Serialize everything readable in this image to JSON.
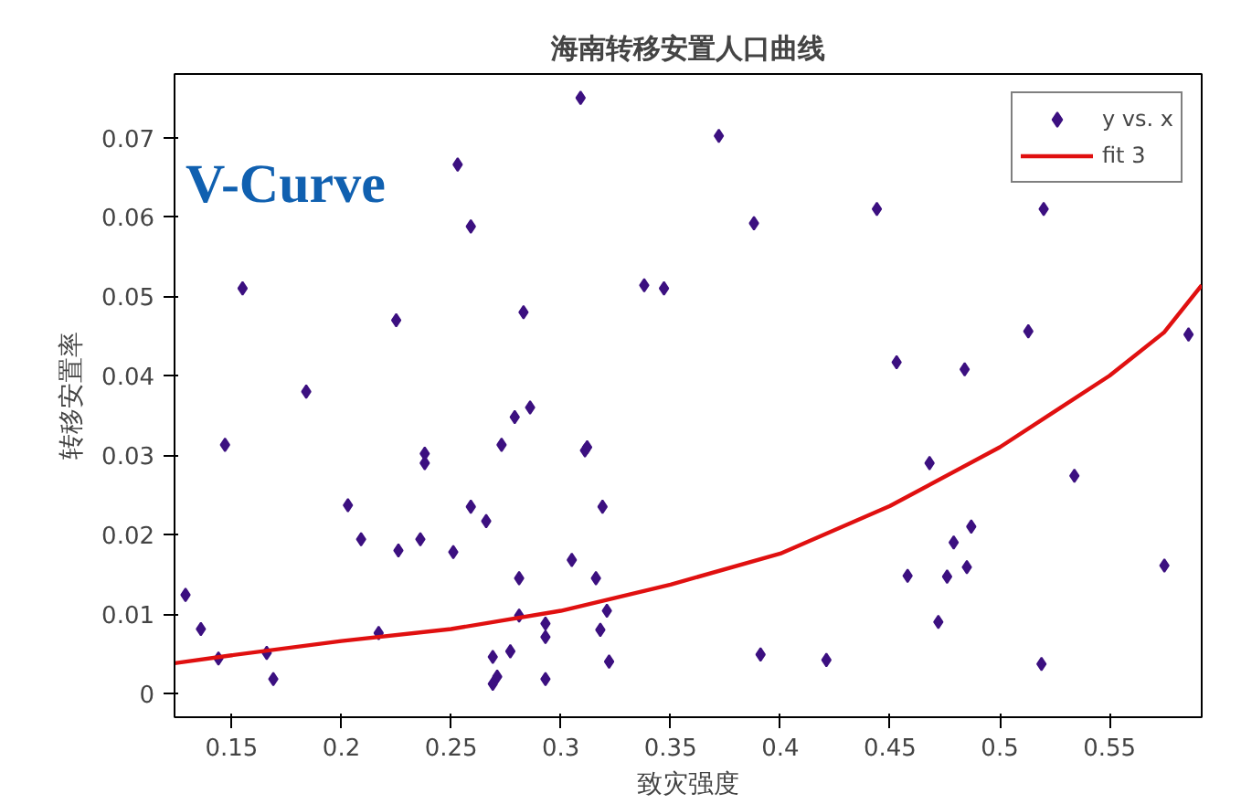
{
  "chart_data": {
    "type": "scatter",
    "title": "海南转移安置人口曲线",
    "xlabel": "致灾强度",
    "ylabel": "转移安置率",
    "annotations": [
      "V-Curve"
    ],
    "xlim": [
      0.124,
      0.592
    ],
    "ylim": [
      -0.003,
      0.078
    ],
    "xticks": [
      0.15,
      0.2,
      0.25,
      0.3,
      0.35,
      0.4,
      0.45,
      0.5,
      0.55
    ],
    "yticks": [
      0,
      0.01,
      0.02,
      0.03,
      0.04,
      0.05,
      0.06,
      0.07
    ],
    "grid": false,
    "legend": "top right",
    "marker": "diamond",
    "series": [
      {
        "name": "y vs. x",
        "type": "scatter",
        "color": "#3c1080",
        "x": [
          0.129,
          0.136,
          0.144,
          0.147,
          0.155,
          0.166,
          0.169,
          0.184,
          0.203,
          0.209,
          0.217,
          0.225,
          0.226,
          0.236,
          0.238,
          0.238,
          0.251,
          0.253,
          0.259,
          0.259,
          0.266,
          0.269,
          0.269,
          0.271,
          0.273,
          0.277,
          0.279,
          0.281,
          0.283,
          0.286,
          0.281,
          0.293,
          0.293,
          0.293,
          0.305,
          0.309,
          0.311,
          0.312,
          0.316,
          0.319,
          0.321,
          0.322,
          0.318,
          0.338,
          0.347,
          0.372,
          0.388,
          0.391,
          0.421,
          0.444,
          0.453,
          0.458,
          0.468,
          0.472,
          0.476,
          0.479,
          0.484,
          0.485,
          0.487,
          0.513,
          0.52,
          0.519,
          0.534,
          0.575,
          0.586
        ],
        "values": [
          0.0124,
          0.0081,
          0.0044,
          0.0313,
          0.051,
          0.0051,
          0.0018,
          0.038,
          0.0237,
          0.0194,
          0.0076,
          0.047,
          0.018,
          0.0194,
          0.0302,
          0.029,
          0.0178,
          0.0666,
          0.0588,
          0.0235,
          0.0217,
          0.0046,
          0.0012,
          0.0021,
          0.0313,
          0.0053,
          0.0348,
          0.0145,
          0.048,
          0.036,
          0.0098,
          0.0088,
          0.0018,
          0.0071,
          0.0168,
          0.075,
          0.0306,
          0.031,
          0.0145,
          0.0235,
          0.0104,
          0.004,
          0.008,
          0.0514,
          0.051,
          0.0702,
          0.0592,
          0.0049,
          0.0042,
          0.061,
          0.0417,
          0.0148,
          0.029,
          0.009,
          0.0147,
          0.019,
          0.0408,
          0.0159,
          0.021,
          0.0456,
          0.061,
          0.0037,
          0.0274,
          0.0161,
          0.0452
        ]
      },
      {
        "name": "fit 3",
        "type": "line",
        "color": "#e01010",
        "marker": "none",
        "line_style": "solid",
        "x": [
          0.124,
          0.15,
          0.2,
          0.25,
          0.3,
          0.35,
          0.4,
          0.45,
          0.5,
          0.525,
          0.55,
          0.575,
          0.592
        ],
        "values": [
          0.0038,
          0.0048,
          0.0066,
          0.0081,
          0.0104,
          0.0137,
          0.0176,
          0.0236,
          0.031,
          0.0355,
          0.04,
          0.0455,
          0.0514
        ]
      }
    ]
  }
}
